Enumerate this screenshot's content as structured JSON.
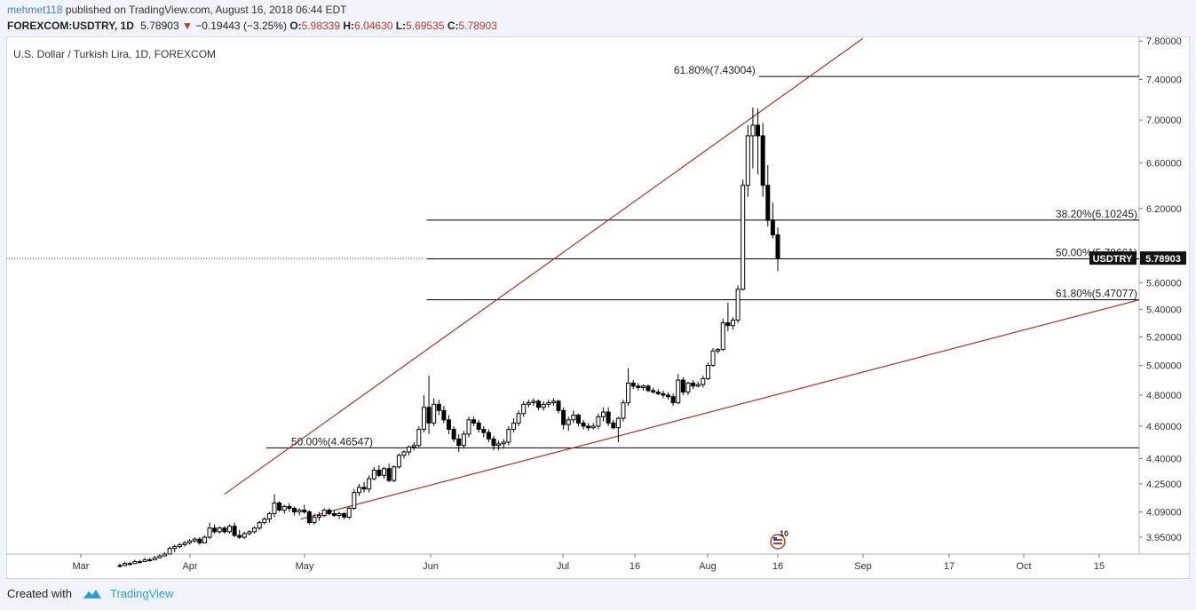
{
  "publish": {
    "author": "mehmet118",
    "text": "published on TradingView.com, August 16, 2018 06:44 EDT"
  },
  "symbol_line": {
    "symbol": "FOREXCOM:USDTRY, 1D",
    "last": "5.78903",
    "arrow": "▼",
    "change": "−0.19443 (−3.25%)",
    "o_label": "O:",
    "o": "5.98339",
    "h_label": "H:",
    "h": "6.04630",
    "l_label": "L:",
    "l": "5.69535",
    "c_label": "C:",
    "c": "5.78903"
  },
  "footer": {
    "created_with": "Created with",
    "brand": "TradingView"
  },
  "colors": {
    "up": "#ffffff",
    "down": "#000000",
    "wedge": "#a0362a",
    "fib": "#000000",
    "change_red": "#c0392b"
  },
  "chart_data": {
    "type": "candlestick",
    "title": "U.S. Dollar / Turkish Lira, 1D, FOREXCOM",
    "scale": "log",
    "ylim": [
      3.86,
      7.85
    ],
    "y_ticks": [
      "3.95000",
      "4.09000",
      "4.25000",
      "4.40000",
      "4.60000",
      "4.80000",
      "5.00000",
      "5.20000",
      "5.40000",
      "5.60000",
      "6.20000",
      "6.60000",
      "7.00000",
      "7.40000",
      "7.80000"
    ],
    "x_ticks": [
      "Mar",
      "Apr",
      "May",
      "Jun",
      "Jul",
      "16",
      "Aug",
      "16",
      "Sep",
      "17",
      "Oct",
      "15"
    ],
    "x_tick_dates": [
      "2018-03-01",
      "2018-04-01",
      "2018-05-01",
      "2018-06-01",
      "2018-07-01",
      "2018-07-16",
      "2018-08-01",
      "2018-08-16",
      "2018-09-01",
      "2018-09-17",
      "2018-10-01",
      "2018-10-15"
    ],
    "last_price": "5.78903",
    "last_symbol": "USDTRY",
    "fib_lines": [
      {
        "label": "61.80%(7.43004)",
        "value": 7.43004,
        "from": "2018-08-12",
        "to": "2018-10-20"
      },
      {
        "label": "38.20%(6.10245)",
        "value": 6.10245,
        "from": "2018-05-31",
        "to": "2018-10-20"
      },
      {
        "label": "50.00%(5.78661)",
        "value": 5.78661,
        "from": "2018-05-31",
        "to": "2018-10-20"
      },
      {
        "label": "61.80%(5.47077)",
        "value": 5.47077,
        "from": "2018-05-31",
        "to": "2018-10-20"
      },
      {
        "label": "50.00%(4.46547)",
        "value": 4.46547,
        "from": "2018-04-21",
        "to": "2018-10-20"
      }
    ],
    "trendlines": [
      {
        "from": [
          "2018-04-10",
          4.19
        ],
        "to": [
          "2018-09-01",
          7.83
        ]
      },
      {
        "from": [
          "2018-04-30",
          4.05
        ],
        "to": [
          "2018-10-20",
          5.47
        ]
      }
    ],
    "event": {
      "date": "2018-08-16",
      "count": "10"
    },
    "candles": [
      [
        "2018-02-26",
        3.8,
        3.81,
        3.79,
        3.8
      ],
      [
        "2018-02-27",
        3.8,
        3.82,
        3.8,
        3.81
      ],
      [
        "2018-02-28",
        3.81,
        3.82,
        3.8,
        3.81
      ],
      [
        "2018-03-01",
        3.81,
        3.83,
        3.81,
        3.82
      ],
      [
        "2018-03-02",
        3.82,
        3.83,
        3.81,
        3.82
      ],
      [
        "2018-03-05",
        3.82,
        3.84,
        3.82,
        3.83
      ],
      [
        "2018-03-06",
        3.83,
        3.84,
        3.82,
        3.83
      ],
      [
        "2018-03-07",
        3.83,
        3.85,
        3.83,
        3.84
      ],
      [
        "2018-03-08",
        3.84,
        3.86,
        3.84,
        3.85
      ],
      [
        "2018-03-09",
        3.85,
        3.87,
        3.85,
        3.86
      ],
      [
        "2018-03-12",
        3.86,
        3.9,
        3.86,
        3.89
      ],
      [
        "2018-03-13",
        3.89,
        3.91,
        3.87,
        3.9
      ],
      [
        "2018-03-14",
        3.9,
        3.92,
        3.89,
        3.91
      ],
      [
        "2018-03-15",
        3.91,
        3.93,
        3.9,
        3.92
      ],
      [
        "2018-03-16",
        3.92,
        3.94,
        3.91,
        3.93
      ],
      [
        "2018-03-19",
        3.93,
        3.95,
        3.92,
        3.94
      ],
      [
        "2018-03-20",
        3.94,
        3.95,
        3.91,
        3.92
      ],
      [
        "2018-03-21",
        3.92,
        3.96,
        3.92,
        3.95
      ],
      [
        "2018-03-22",
        3.95,
        4.03,
        3.94,
        4.0
      ],
      [
        "2018-03-23",
        4.0,
        4.02,
        3.97,
        3.98
      ],
      [
        "2018-03-26",
        3.98,
        4.01,
        3.97,
        4.0
      ],
      [
        "2018-03-27",
        4.0,
        4.01,
        3.97,
        3.98
      ],
      [
        "2018-03-28",
        3.98,
        4.02,
        3.97,
        4.01
      ],
      [
        "2018-03-29",
        4.01,
        4.03,
        3.95,
        3.96
      ],
      [
        "2018-03-30",
        3.96,
        3.99,
        3.94,
        3.95
      ],
      [
        "2018-04-02",
        3.95,
        3.98,
        3.94,
        3.97
      ],
      [
        "2018-04-03",
        3.97,
        3.99,
        3.96,
        3.98
      ],
      [
        "2018-04-04",
        3.98,
        4.01,
        3.97,
        4.0
      ],
      [
        "2018-04-05",
        4.0,
        4.04,
        3.99,
        4.03
      ],
      [
        "2018-04-06",
        4.03,
        4.06,
        4.02,
        4.05
      ],
      [
        "2018-04-09",
        4.05,
        4.09,
        4.03,
        4.08
      ],
      [
        "2018-04-10",
        4.08,
        4.19,
        4.06,
        4.14
      ],
      [
        "2018-04-11",
        4.14,
        4.15,
        4.09,
        4.1
      ],
      [
        "2018-04-12",
        4.1,
        4.13,
        4.08,
        4.12
      ],
      [
        "2018-04-13",
        4.12,
        4.14,
        4.09,
        4.11
      ],
      [
        "2018-04-16",
        4.11,
        4.12,
        4.07,
        4.09
      ],
      [
        "2018-04-17",
        4.09,
        4.11,
        4.07,
        4.1
      ],
      [
        "2018-04-18",
        4.1,
        4.13,
        4.08,
        4.09
      ],
      [
        "2018-04-19",
        4.09,
        4.1,
        4.02,
        4.03
      ],
      [
        "2018-04-20",
        4.03,
        4.08,
        4.02,
        4.06
      ],
      [
        "2018-04-23",
        4.06,
        4.09,
        4.04,
        4.07
      ],
      [
        "2018-04-24",
        4.07,
        4.11,
        4.06,
        4.1
      ],
      [
        "2018-04-25",
        4.1,
        4.11,
        4.07,
        4.08
      ],
      [
        "2018-04-26",
        4.08,
        4.1,
        4.06,
        4.07
      ],
      [
        "2018-04-27",
        4.07,
        4.09,
        4.05,
        4.08
      ],
      [
        "2018-04-30",
        4.08,
        4.09,
        4.05,
        4.06
      ],
      [
        "2018-05-01",
        4.06,
        4.12,
        4.05,
        4.11
      ],
      [
        "2018-05-02",
        4.11,
        4.22,
        4.1,
        4.2
      ],
      [
        "2018-05-03",
        4.2,
        4.25,
        4.18,
        4.23
      ],
      [
        "2018-05-04",
        4.23,
        4.26,
        4.2,
        4.22
      ],
      [
        "2018-05-07",
        4.22,
        4.3,
        4.2,
        4.28
      ],
      [
        "2018-05-08",
        4.28,
        4.35,
        4.27,
        4.33
      ],
      [
        "2018-05-09",
        4.33,
        4.36,
        4.29,
        4.3
      ],
      [
        "2018-05-10",
        4.3,
        4.35,
        4.28,
        4.34
      ],
      [
        "2018-05-11",
        4.34,
        4.37,
        4.26,
        4.27
      ],
      [
        "2018-05-14",
        4.27,
        4.36,
        4.26,
        4.35
      ],
      [
        "2018-05-15",
        4.35,
        4.43,
        4.34,
        4.42
      ],
      [
        "2018-05-16",
        4.42,
        4.45,
        4.4,
        4.44
      ],
      [
        "2018-05-17",
        4.44,
        4.48,
        4.42,
        4.47
      ],
      [
        "2018-05-18",
        4.47,
        4.5,
        4.45,
        4.48
      ],
      [
        "2018-05-21",
        4.48,
        4.6,
        4.47,
        4.58
      ],
      [
        "2018-05-22",
        4.58,
        4.8,
        4.56,
        4.72
      ],
      [
        "2018-05-23",
        4.72,
        4.93,
        4.55,
        4.62
      ],
      [
        "2018-05-24",
        4.62,
        4.78,
        4.6,
        4.74
      ],
      [
        "2018-05-25",
        4.74,
        4.77,
        4.67,
        4.7
      ],
      [
        "2018-05-28",
        4.7,
        4.73,
        4.62,
        4.64
      ],
      [
        "2018-05-29",
        4.64,
        4.67,
        4.55,
        4.58
      ],
      [
        "2018-05-30",
        4.58,
        4.6,
        4.5,
        4.52
      ],
      [
        "2018-05-31",
        4.52,
        4.55,
        4.44,
        4.48
      ],
      [
        "2018-06-01",
        4.48,
        4.57,
        4.46,
        4.55
      ],
      [
        "2018-06-04",
        4.55,
        4.66,
        4.53,
        4.64
      ],
      [
        "2018-06-05",
        4.64,
        4.66,
        4.6,
        4.62
      ],
      [
        "2018-06-06",
        4.62,
        4.64,
        4.56,
        4.58
      ],
      [
        "2018-06-07",
        4.58,
        4.6,
        4.53,
        4.56
      ],
      [
        "2018-06-08",
        4.56,
        4.58,
        4.5,
        4.52
      ],
      [
        "2018-06-11",
        4.52,
        4.54,
        4.45,
        4.48
      ],
      [
        "2018-06-12",
        4.48,
        4.51,
        4.45,
        4.49
      ],
      [
        "2018-06-13",
        4.49,
        4.52,
        4.46,
        4.5
      ],
      [
        "2018-06-14",
        4.5,
        4.6,
        4.48,
        4.58
      ],
      [
        "2018-06-15",
        4.58,
        4.65,
        4.56,
        4.62
      ],
      [
        "2018-06-18",
        4.62,
        4.7,
        4.6,
        4.68
      ],
      [
        "2018-06-19",
        4.68,
        4.76,
        4.66,
        4.74
      ],
      [
        "2018-06-20",
        4.74,
        4.77,
        4.72,
        4.75
      ],
      [
        "2018-06-21",
        4.75,
        4.78,
        4.73,
        4.76
      ],
      [
        "2018-06-22",
        4.76,
        4.77,
        4.7,
        4.72
      ],
      [
        "2018-06-25",
        4.72,
        4.76,
        4.7,
        4.74
      ],
      [
        "2018-06-26",
        4.74,
        4.77,
        4.72,
        4.75
      ],
      [
        "2018-06-27",
        4.75,
        4.78,
        4.73,
        4.76
      ],
      [
        "2018-06-28",
        4.76,
        4.77,
        4.68,
        4.7
      ],
      [
        "2018-06-29",
        4.7,
        4.72,
        4.58,
        4.61
      ],
      [
        "2018-07-02",
        4.61,
        4.66,
        4.57,
        4.64
      ],
      [
        "2018-07-03",
        4.64,
        4.7,
        4.62,
        4.67
      ],
      [
        "2018-07-04",
        4.67,
        4.68,
        4.6,
        4.62
      ],
      [
        "2018-07-05",
        4.62,
        4.64,
        4.58,
        4.6
      ],
      [
        "2018-07-06",
        4.6,
        4.62,
        4.57,
        4.59
      ],
      [
        "2018-07-09",
        4.59,
        4.62,
        4.58,
        4.6
      ],
      [
        "2018-07-10",
        4.6,
        4.68,
        4.58,
        4.66
      ],
      [
        "2018-07-11",
        4.66,
        4.72,
        4.63,
        4.69
      ],
      [
        "2018-07-12",
        4.69,
        4.72,
        4.6,
        4.62
      ],
      [
        "2018-07-13",
        4.62,
        4.64,
        4.58,
        4.59
      ],
      [
        "2018-07-16",
        4.59,
        4.66,
        4.5,
        4.65
      ],
      [
        "2018-07-17",
        4.65,
        4.77,
        4.63,
        4.75
      ],
      [
        "2018-07-18",
        4.75,
        4.98,
        4.73,
        4.88
      ],
      [
        "2018-07-19",
        4.88,
        4.9,
        4.84,
        4.86
      ],
      [
        "2018-07-20",
        4.86,
        4.88,
        4.83,
        4.85
      ],
      [
        "2018-07-23",
        4.85,
        4.87,
        4.83,
        4.86
      ],
      [
        "2018-07-24",
        4.86,
        4.87,
        4.82,
        4.83
      ],
      [
        "2018-07-25",
        4.83,
        4.85,
        4.81,
        4.82
      ],
      [
        "2018-07-26",
        4.82,
        4.84,
        4.8,
        4.81
      ],
      [
        "2018-07-27",
        4.81,
        4.83,
        4.78,
        4.8
      ],
      [
        "2018-07-30",
        4.8,
        4.82,
        4.77,
        4.79
      ],
      [
        "2018-07-31",
        4.79,
        4.81,
        4.73,
        4.75
      ],
      [
        "2018-08-01",
        4.75,
        4.94,
        4.74,
        4.9
      ],
      [
        "2018-08-02",
        4.9,
        4.92,
        4.8,
        4.82
      ],
      [
        "2018-08-03",
        4.82,
        4.89,
        4.8,
        4.88
      ],
      [
        "2018-08-06",
        4.88,
        4.9,
        4.84,
        4.86
      ],
      [
        "2018-08-07",
        4.86,
        4.89,
        4.85,
        4.87
      ],
      [
        "2018-08-08",
        4.87,
        4.93,
        4.85,
        4.91
      ],
      [
        "2018-08-09",
        4.91,
        5.02,
        4.9,
        5.0
      ],
      [
        "2018-08-10",
        5.0,
        5.12,
        4.99,
        5.1
      ],
      [
        "2018-08-13",
        5.1,
        5.12,
        5.08,
        5.11
      ],
      [
        "2018-08-14",
        5.11,
        5.33,
        5.1,
        5.3
      ],
      [
        "2018-08-15",
        5.3,
        5.45,
        5.24,
        5.28
      ],
      [
        "2018-08-16",
        5.28,
        5.34,
        5.25,
        5.32
      ],
      [
        "2018-08-17",
        5.32,
        5.58,
        5.3,
        5.55
      ],
      [
        "2018-08-20",
        5.55,
        6.45,
        5.54,
        6.4
      ],
      [
        "2018-08-21",
        6.4,
        6.95,
        6.3,
        6.85
      ],
      [
        "2018-08-22",
        6.85,
        7.12,
        6.55,
        6.95
      ],
      [
        "2018-08-23",
        6.95,
        7.11,
        6.5,
        6.85
      ],
      [
        "2018-08-24",
        6.85,
        6.97,
        6.3,
        6.4
      ],
      [
        "2018-08-27",
        6.4,
        6.58,
        6.05,
        6.1
      ],
      [
        "2018-08-28",
        6.1,
        6.25,
        5.95,
        5.98
      ],
      [
        "2018-08-29",
        5.98,
        6.04,
        5.69,
        5.79
      ]
    ]
  }
}
